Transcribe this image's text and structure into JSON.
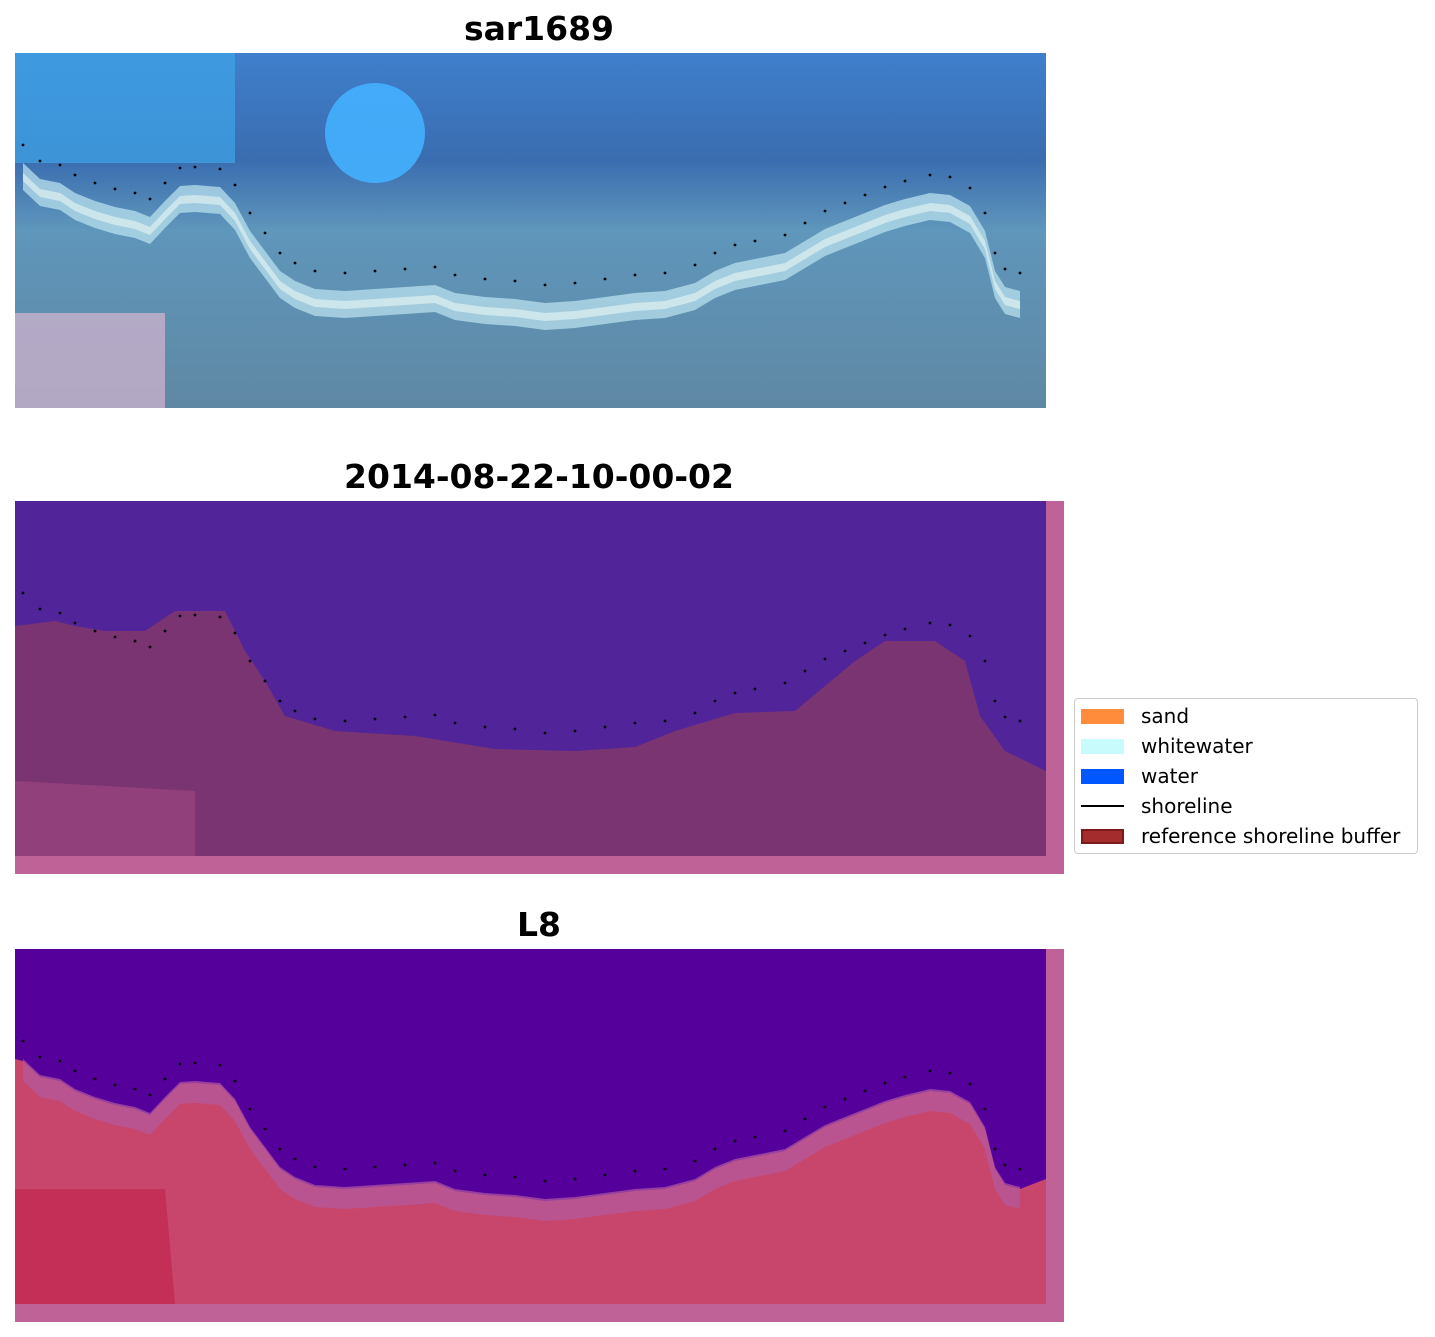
{
  "panels": [
    {
      "title": "sar1689"
    },
    {
      "title": "2014-08-22-10-00-02"
    },
    {
      "title": "L8"
    }
  ],
  "legend": {
    "items": [
      {
        "label": "sand",
        "color": "#ff8c3a"
      },
      {
        "label": "whitewater",
        "color": "#c8fcfc"
      },
      {
        "label": "water",
        "color": "#0057ff"
      },
      {
        "label": "shoreline",
        "color": "#000000"
      },
      {
        "label": "reference shoreline buffer",
        "color": "#a52c2c"
      }
    ]
  },
  "colors": {
    "rgb_sky": "#3b6fb0",
    "rgb_highlight": "#40b4ff",
    "rgb_land": "#5a88a6",
    "class_water": "#51249a",
    "class_land": "#7a3471",
    "class_buffer_edge": "#be6298",
    "index_water": "#55009a",
    "index_land": "#c8426c"
  }
}
